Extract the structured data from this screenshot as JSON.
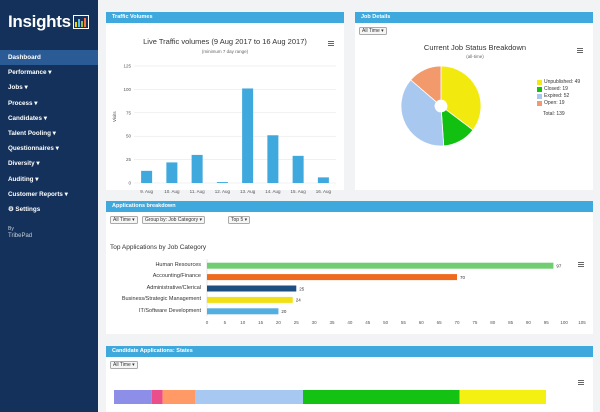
{
  "app": {
    "logo_text": "Insights"
  },
  "sidebar": {
    "items": [
      {
        "label": "Dashboard"
      },
      {
        "label": "Performance ▾"
      },
      {
        "label": "Jobs ▾"
      },
      {
        "label": "Process ▾"
      },
      {
        "label": "Candidates ▾"
      },
      {
        "label": "Talent Pooling ▾"
      },
      {
        "label": "Questionnaires ▾"
      },
      {
        "label": "Diversity ▾"
      },
      {
        "label": "Auditing ▾"
      },
      {
        "label": "Customer Reports ▾"
      },
      {
        "label": "⚙ Settings"
      }
    ],
    "by_label": "By",
    "brand": "TribePad"
  },
  "panels": {
    "traffic": {
      "header": "Traffic Volumes",
      "title": "Live Traffic volumes (9 Aug 2017 to 16 Aug 2017)",
      "subtitle": "(minimum 7 day range)",
      "ylabel": "Visits"
    },
    "job_details": {
      "header": "Job Details",
      "filter": "All Time ▾",
      "title": "Current Job Status Breakdown",
      "subtitle": "(all-time)",
      "total": "Total: 139"
    },
    "applications": {
      "header": "Applications breakdown",
      "filter_time": "All Time ▾",
      "filter_group": "Group by: Job Category ▾",
      "filter_top": "Top 5 ▾",
      "title": "Top Applications by Job Category"
    },
    "candidate": {
      "header": "Candidate Applications: States",
      "filter": "All Time ▾"
    }
  },
  "colors": {
    "sidebar_bg": "#13315a",
    "active_bg": "#2b5b95",
    "panel_header": "#3fa8dd",
    "bar_blue": "#3fa8dd"
  },
  "chart_data": [
    {
      "type": "bar",
      "title": "Live Traffic volumes (9 Aug 2017 to 16 Aug 2017)",
      "ylabel": "Visits",
      "categories": [
        "9. Aug",
        "10. Aug",
        "11. Aug",
        "12. Aug",
        "13. Aug",
        "14. Aug",
        "15. Aug",
        "16. Aug"
      ],
      "values": [
        13,
        22,
        30,
        1,
        101,
        51,
        29,
        6
      ],
      "ylim": [
        0,
        125
      ],
      "yticks": [
        "0",
        "25",
        "50",
        "75",
        "100",
        "125"
      ],
      "grid": true
    },
    {
      "type": "pie",
      "title": "Current Job Status Breakdown",
      "subtitle": "(all-time)",
      "slices": [
        {
          "label": "Unpublished",
          "value": 49,
          "color": "#f2ea0f",
          "legend": "Unpublished: 49"
        },
        {
          "label": "Closed",
          "value": 19,
          "color": "#11c011",
          "legend": "Closed: 19"
        },
        {
          "label": "Expired",
          "value": 52,
          "color": "#a8c8f0",
          "legend": "Expired: 52"
        },
        {
          "label": "Open",
          "value": 19,
          "color": "#f39a6d",
          "legend": "Open: 19"
        }
      ],
      "donut": true,
      "legend_position": "right"
    },
    {
      "type": "bar",
      "orientation": "horizontal",
      "title": "Top Applications by Job Category",
      "categories": [
        "Human Resources",
        "Accounting/Finance",
        "Administrative/Clerical",
        "Business/Strategic Management",
        "IT/Software Development"
      ],
      "values": [
        97,
        70,
        25,
        24,
        20
      ],
      "colors": [
        "#71cd72",
        "#ef6a1c",
        "#1e4f83",
        "#f0e116",
        "#54aedf"
      ],
      "xlim": [
        0,
        105
      ],
      "xticks": [
        "0",
        "5",
        "10",
        "15",
        "20",
        "25",
        "30",
        "35",
        "40",
        "45",
        "50",
        "55",
        "60",
        "65",
        "70",
        "75",
        "80",
        "85",
        "90",
        "95",
        "100",
        "105"
      ]
    },
    {
      "type": "bar",
      "orientation": "stacked-horizontal",
      "segments": [
        {
          "value": 7,
          "color": "#8c8ee8"
        },
        {
          "value": 2,
          "color": "#ea4f8b"
        },
        {
          "value": 6,
          "color": "#ff9a66"
        },
        {
          "value": 20,
          "color": "#a7c9f1"
        },
        {
          "value": 29,
          "color": "#14c214"
        },
        {
          "value": 16,
          "color": "#f4f012"
        }
      ]
    }
  ]
}
